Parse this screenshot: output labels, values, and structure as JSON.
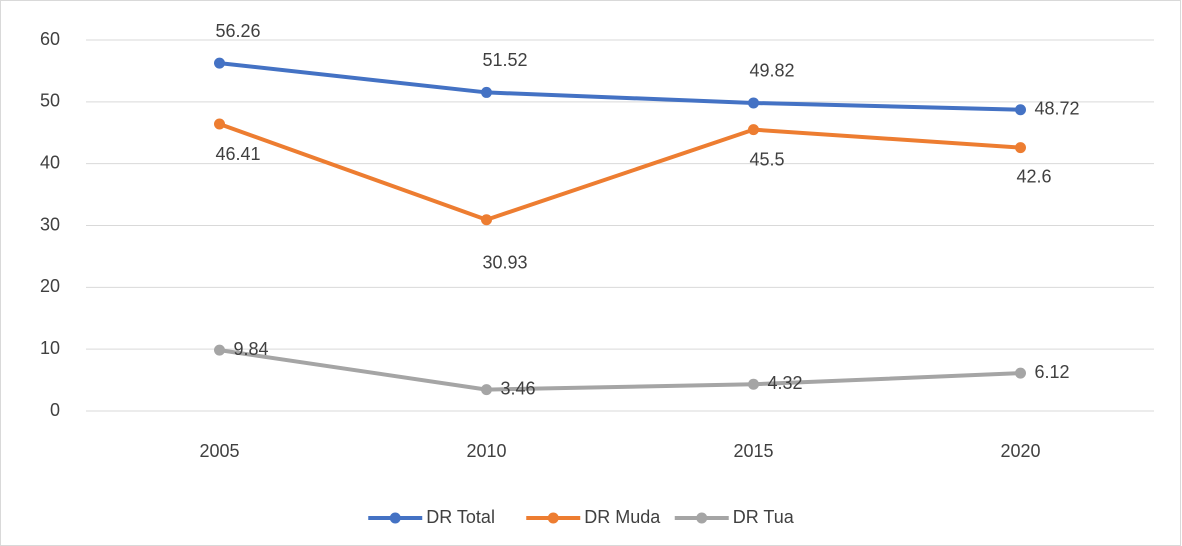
{
  "chart_data": {
    "type": "line",
    "categories": [
      "2005",
      "2010",
      "2015",
      "2020"
    ],
    "series": [
      {
        "name": "DR Total",
        "color": "#4472c4",
        "values": [
          56.26,
          51.52,
          49.82,
          48.72
        ]
      },
      {
        "name": "DR Muda",
        "color": "#ed7d31",
        "values": [
          46.41,
          30.93,
          45.5,
          42.6
        ]
      },
      {
        "name": "DR Tua",
        "color": "#a5a5a5",
        "values": [
          9.84,
          3.46,
          4.32,
          6.12
        ]
      }
    ],
    "ylim": [
      0,
      60
    ],
    "yticks": [
      0,
      10,
      20,
      30,
      40,
      50,
      60
    ],
    "grid": true,
    "legend": "bottom"
  }
}
